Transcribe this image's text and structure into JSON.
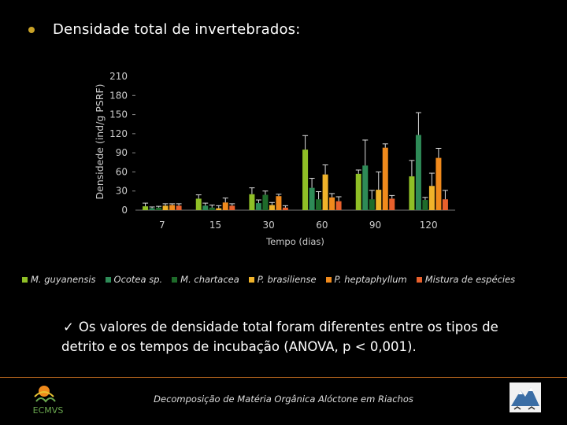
{
  "slide": {
    "heading": "Densidade total de invertebrados:",
    "note_check": "✓",
    "note_text": "Os valores de densidade total foram diferentes entre os tipos de detrito e os tempos de incubação (ANOVA, p < 0,001).",
    "footer": "Decomposição de Matéria Orgânica Alóctone em Riachos",
    "logo_left_text": "ECMVS"
  },
  "colors": {
    "series": [
      "#8fbf26",
      "#2e8b57",
      "#1e6b2a",
      "#f0b32a",
      "#f08a1c",
      "#e8602c"
    ],
    "bullet": "#c9a227",
    "divider": "#b5651d"
  },
  "chart_data": {
    "type": "bar",
    "title": "",
    "xlabel": "Tempo (dias)",
    "ylabel": "Densidede (ind/g PSRF)",
    "ylim": [
      0,
      210
    ],
    "yticks": [
      0,
      30,
      60,
      90,
      120,
      150,
      180,
      210
    ],
    "categories": [
      "7",
      "15",
      "30",
      "60",
      "90",
      "120"
    ],
    "series": [
      {
        "name": "M. guyanensis",
        "values": [
          6,
          18,
          25,
          95,
          57,
          53
        ],
        "errors": [
          5,
          6,
          10,
          22,
          6,
          25
        ]
      },
      {
        "name": "Ocotea sp.",
        "values": [
          3,
          7,
          11,
          35,
          70,
          118
        ],
        "errors": [
          2,
          4,
          5,
          15,
          40,
          35
        ]
      },
      {
        "name": "M. chartacea",
        "values": [
          4,
          4,
          24,
          17,
          17,
          16
        ],
        "errors": [
          2,
          4,
          6,
          12,
          14,
          4
        ]
      },
      {
        "name": "P. brasiliense",
        "values": [
          7,
          3,
          8,
          56,
          32,
          38
        ],
        "errors": [
          3,
          4,
          4,
          15,
          28,
          20
        ]
      },
      {
        "name": "P. heptaphyllum",
        "values": [
          8,
          12,
          22,
          20,
          98,
          82
        ],
        "errors": [
          2,
          7,
          3,
          6,
          6,
          15
        ]
      },
      {
        "name": "Mistura de espécies",
        "values": [
          7,
          7,
          4,
          14,
          18,
          17
        ],
        "errors": [
          3,
          3,
          3,
          7,
          5,
          14
        ]
      }
    ]
  }
}
